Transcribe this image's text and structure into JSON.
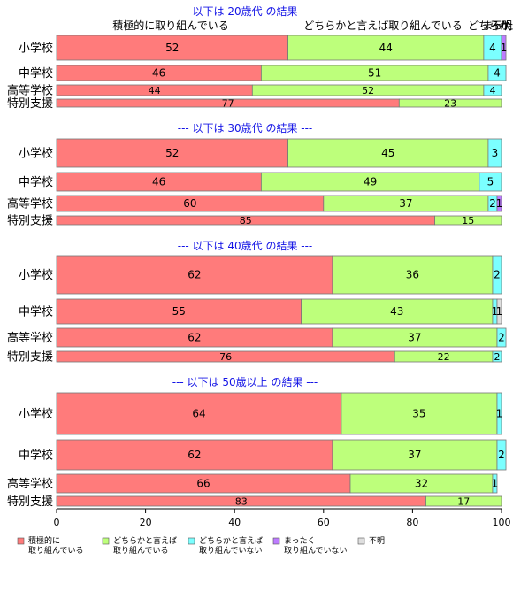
{
  "chart_data": {
    "type": "bar",
    "orientation": "horizontal",
    "stacked": true,
    "xlim": [
      0,
      100
    ],
    "x_ticks": [
      "0",
      "20",
      "40",
      "60",
      "80",
      "100"
    ],
    "header_labels": [
      "積極的に取り組んでいる",
      "どちらかと言えば取り組んでいる",
      "どちらか",
      "まった",
      "不明"
    ],
    "series_names": [
      "積極的に取り組んでいる",
      "どちらかと言えば取り組んでいる",
      "どちらかと言えば取り組んでいない",
      "まったく取り組んでいない",
      "不明"
    ],
    "colors": [
      "#FF7B7B",
      "#BDFF7B",
      "#7BFFFF",
      "#BD7BFF",
      "#DEDEDE"
    ],
    "legend": {
      "placement": "bottom",
      "items": [
        {
          "line1": "積極的に",
          "line2": "取り組んでいる"
        },
        {
          "line1": "どちらかと言えば",
          "line2": "取り組んでいる"
        },
        {
          "line1": "どちらかと言えば",
          "line2": "取り組んでいない"
        },
        {
          "line1": "まったく",
          "line2": "取り組んでいない"
        },
        {
          "line1": "不明",
          "line2": ""
        }
      ]
    },
    "groups": [
      {
        "title": "--- 以下は 20歳代 の結果 ---",
        "rows": [
          {
            "label": "小学校",
            "values": [
              52,
              44,
              4,
              1,
              0
            ]
          },
          {
            "label": "中学校",
            "values": [
              46,
              51,
              4,
              0,
              0
            ]
          },
          {
            "label": "高等学校",
            "values": [
              44,
              52,
              4,
              0,
              0
            ]
          },
          {
            "label": "特別支援",
            "values": [
              77,
              23,
              0,
              0,
              0
            ]
          }
        ]
      },
      {
        "title": "--- 以下は 30歳代 の結果 ---",
        "rows": [
          {
            "label": "小学校",
            "values": [
              52,
              45,
              3,
              0,
              0
            ]
          },
          {
            "label": "中学校",
            "values": [
              46,
              49,
              5,
              0,
              0
            ]
          },
          {
            "label": "高等学校",
            "values": [
              60,
              37,
              2,
              1,
              0
            ]
          },
          {
            "label": "特別支援",
            "values": [
              85,
              15,
              0,
              0,
              0
            ]
          }
        ]
      },
      {
        "title": "--- 以下は 40歳代 の結果 ---",
        "rows": [
          {
            "label": "小学校",
            "values": [
              62,
              36,
              2,
              0,
              0
            ]
          },
          {
            "label": "中学校",
            "values": [
              55,
              43,
              1,
              0,
              1
            ]
          },
          {
            "label": "高等学校",
            "values": [
              62,
              37,
              2,
              0,
              0
            ]
          },
          {
            "label": "特別支援",
            "values": [
              76,
              22,
              2,
              0,
              0
            ]
          }
        ]
      },
      {
        "title": "--- 以下は 50歳以上 の結果 ---",
        "rows": [
          {
            "label": "小学校",
            "values": [
              64,
              35,
              1,
              0,
              0
            ]
          },
          {
            "label": "中学校",
            "values": [
              62,
              37,
              2,
              0,
              0
            ]
          },
          {
            "label": "高等学校",
            "values": [
              66,
              32,
              1,
              0,
              0
            ]
          },
          {
            "label": "特別支援",
            "values": [
              83,
              17,
              0,
              0,
              0
            ]
          }
        ]
      }
    ]
  }
}
